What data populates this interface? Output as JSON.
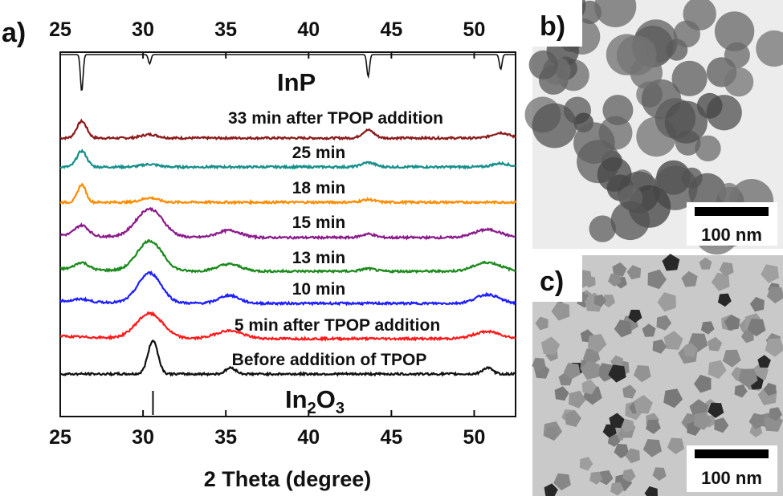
{
  "panels": {
    "a": "a)",
    "b": "b)",
    "c": "c)"
  },
  "chart_data": {
    "type": "line",
    "title": "",
    "xlabel": "2 Theta (degree)",
    "ylabel": "",
    "xlim": [
      25,
      52.5
    ],
    "xticks": [
      25,
      30,
      35,
      40,
      45,
      50
    ],
    "xtick_labels": [
      "25",
      "30",
      "35",
      "40",
      "45",
      "50"
    ],
    "top_axis_ticks": [
      "25",
      "30",
      "35",
      "40",
      "45",
      "50"
    ],
    "reference_top": {
      "name": "InP",
      "peaks": [
        26.3,
        30.4,
        43.6,
        51.6
      ],
      "heights": [
        1.0,
        0.25,
        0.6,
        0.4
      ]
    },
    "reference_bottom": {
      "name": "In₂O₃",
      "name_main": "In",
      "name_sub1": "2",
      "name_mid": "O",
      "name_sub2": "3",
      "peaks": [
        30.6
      ],
      "heights": [
        1.0
      ]
    },
    "series": [
      {
        "name": "33 min after TPOP addition",
        "label": "33 min after TPOP addition",
        "color": "#8b1a1a",
        "peaks": [
          [
            26.3,
            0.95,
            0.3
          ],
          [
            30.4,
            0.2,
            0.5
          ],
          [
            43.6,
            0.45,
            0.35
          ],
          [
            51.6,
            0.3,
            0.5
          ]
        ]
      },
      {
        "name": "25 min",
        "label": "25 min",
        "color": "#158f8a",
        "peaks": [
          [
            26.3,
            0.9,
            0.3
          ],
          [
            30.4,
            0.15,
            0.5
          ],
          [
            43.6,
            0.25,
            0.4
          ],
          [
            51.6,
            0.2,
            0.5
          ]
        ]
      },
      {
        "name": "18 min",
        "label": "18 min",
        "color": "#ff8c00",
        "peaks": [
          [
            26.3,
            1.0,
            0.25
          ],
          [
            30.4,
            0.25,
            0.5
          ],
          [
            43.6,
            0.15,
            0.4
          ]
        ]
      },
      {
        "name": "15 min",
        "label": "15 min",
        "color": "#8b1a8b",
        "peaks": [
          [
            26.3,
            0.6,
            0.4
          ],
          [
            30.4,
            1.6,
            0.8
          ],
          [
            35.2,
            0.4,
            0.7
          ],
          [
            43.6,
            0.2,
            0.4
          ],
          [
            50.8,
            0.45,
            0.8
          ]
        ]
      },
      {
        "name": "13 min",
        "label": "13 min",
        "color": "#1a8a1a",
        "peaks": [
          [
            26.3,
            0.4,
            0.4
          ],
          [
            30.4,
            1.7,
            0.75
          ],
          [
            35.2,
            0.4,
            0.7
          ],
          [
            43.6,
            0.15,
            0.4
          ],
          [
            50.8,
            0.5,
            0.8
          ]
        ]
      },
      {
        "name": "10 min",
        "label": "10 min",
        "color": "#1e1eff",
        "peaks": [
          [
            26.3,
            0.15,
            0.4
          ],
          [
            30.4,
            1.7,
            0.7
          ],
          [
            35.2,
            0.45,
            0.6
          ],
          [
            50.8,
            0.5,
            0.7
          ]
        ]
      },
      {
        "name": "5 min after TPOP addition",
        "label": "5 min after TPOP addition",
        "color": "#ff1a1a",
        "peaks": [
          [
            30.4,
            1.4,
            0.8
          ],
          [
            35.2,
            0.45,
            0.8
          ],
          [
            50.8,
            0.4,
            0.8
          ]
        ]
      },
      {
        "name": "Before addition of TPOP",
        "label": "Before addition of TPOP",
        "color": "#111111",
        "peaks": [
          [
            30.6,
            1.9,
            0.3
          ],
          [
            35.3,
            0.35,
            0.3
          ],
          [
            50.8,
            0.35,
            0.3
          ]
        ]
      }
    ]
  },
  "tem": {
    "b_scale": "100 nm",
    "c_scale": "100 nm"
  },
  "colors": {
    "axis": "#111111",
    "tem_b_bg": "#eeeeee",
    "tem_c_bg": "#c8c8c8"
  }
}
